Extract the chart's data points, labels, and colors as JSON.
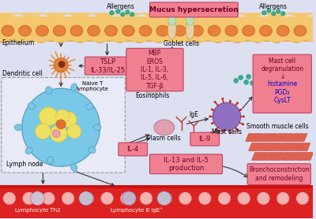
{
  "bg_color": "#dce0f0",
  "epi_color": "#f5c870",
  "epi_cell_color": "#e8813a",
  "epi_cell_edge": "#c06020",
  "blood_color": "#dd2222",
  "blood_cell_color": "#f5b0b0",
  "blood_cell_edge": "#d08080",
  "box_face": "#f08090",
  "box_edge": "#c04060",
  "box_text": "#800020",
  "lymph_face": "#e8eaf8",
  "lymph_edge": "#999999",
  "allergen_color": "#30b090",
  "allergen_edge": "#208060",
  "goblet_body": "#e8d0a0",
  "goblet_top": "#a8d8b0",
  "dc_color": "#e8813a",
  "dc_nucleus": "#804020",
  "lymph_node_color": "#70c0e0",
  "lymph_node_edge": "#4090b0",
  "yellow_blob": "#f0e060",
  "plasma_color": "#e0a0b0",
  "eos_color": "#c8c8c8",
  "mast_color": "#9070c0",
  "mast_edge": "#705090",
  "mast_proj": "#cc3030",
  "smooth_color": "#e06050",
  "smooth_edge": "#c04030",
  "mucus_bold": true,
  "labels": {
    "epithelium": "Epithelium",
    "dendritic_cell": "Dendritic cell",
    "lymph_node": "Lymph node",
    "naive_t": "Naive T\nlymphocyte",
    "allergens1": "Allergens",
    "allergens2": "Allergens",
    "mucus": "Mucus hypersecretion",
    "goblet": "Goblet cells",
    "eosinophils": "Eosinophils",
    "plasma": "Plasm cells",
    "mast": "Mast cells",
    "tslp": "TSLP\nIL-33/IL-25",
    "mbp_box": "MBP\nEROS\nIL-1, IL-3,\nIL-5, IL-6,\nTGF-β",
    "il4": "IL-4",
    "il9": "IL-9",
    "il13": "IL-13 and IL-5\nproduction",
    "mast_deg_title": "Mast cell\ndegranulation\n↓",
    "mast_deg_sub": "histamine\nPGD₂\nCysLT",
    "smooth": "Smooth muscle cells",
    "broncho": "Bronchoconstriction\nand remodeling",
    "lympho_th2": "Lymphocyte Th2",
    "lympho_b": "Lymphocyte B IgE⁺",
    "ige": "IgE"
  }
}
